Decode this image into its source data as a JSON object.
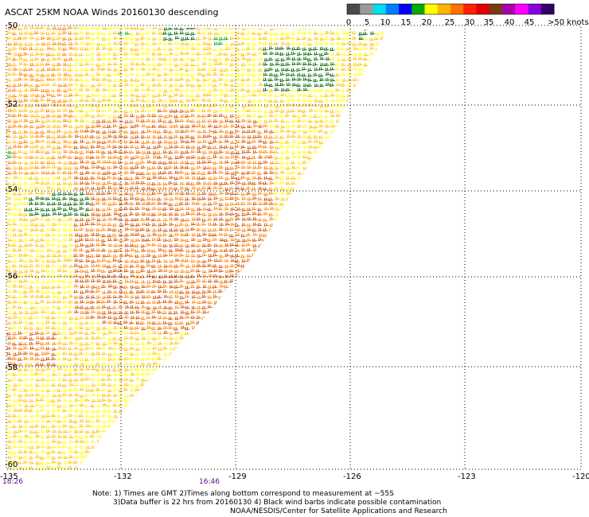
{
  "title": "ASCAT 25KM NOAA Winds 20160130 descending",
  "legend": {
    "ticks": [
      "0",
      "5",
      "10",
      "15",
      "20",
      "25",
      "30",
      "35",
      "40",
      "45",
      ">50 knots"
    ],
    "colors": [
      "#4a4a4a",
      "#9a9a9a",
      "#00ddee",
      "#0080ff",
      "#0000ff",
      "#00aa00",
      "#ffff00",
      "#ffb400",
      "#ff7000",
      "#ff2000",
      "#e00000",
      "#7a3a14",
      "#aa00aa",
      "#ff00ff",
      "#8800dd",
      "#330066"
    ]
  },
  "map": {
    "lat_labels": [
      "-50",
      "-52",
      "-54",
      "-56",
      "-58",
      "-60"
    ],
    "lon_labels": [
      "-135",
      "-132",
      "-129",
      "-126",
      "-123",
      "-120"
    ],
    "time_labels": [
      "18:26",
      "16:46"
    ],
    "wind_colors": {
      "light": "#ffff00",
      "moderate": "#ffc000",
      "strong": "#ff8000",
      "gale": "#d05000",
      "calm": "#00aa00",
      "contaminated": "#006000"
    }
  },
  "notes": {
    "line1": "Note: 1) Times are GMT 2)Times along bottom correspond to measurement at ~55S",
    "line2": "3)Data buffer is 22 hrs from 20160130 4) Black wind barbs indicate possible contamination",
    "line3": "NOAA/NESDIS/Center for Satellite Applications and Research"
  }
}
